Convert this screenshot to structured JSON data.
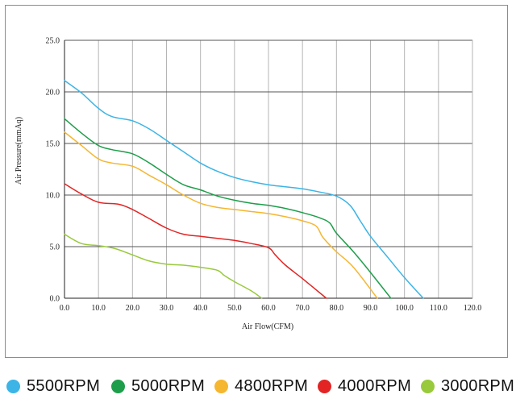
{
  "chart_data": {
    "type": "line",
    "title": "",
    "xlabel": "Air Flow(CFM)",
    "ylabel": "Air Pressure(mmAq)",
    "xlim": [
      0,
      120
    ],
    "ylim": [
      0,
      25
    ],
    "x_ticks": [
      "0.0",
      "10.0",
      "20.0",
      "30.0",
      "40.0",
      "50.0",
      "60.0",
      "70.0",
      "80.0",
      "90.0",
      "100.0",
      "110.0",
      "120.0"
    ],
    "y_ticks": [
      "0.0",
      "5.0",
      "10.0",
      "15.0",
      "20.0",
      "25.0"
    ],
    "grid": true,
    "legend_position": "bottom",
    "series": [
      {
        "name": "5500RPM",
        "color": "#3cb4e6",
        "x": [
          0,
          5,
          10,
          14,
          20,
          25,
          30,
          35,
          40,
          45,
          50,
          55,
          60,
          65,
          70,
          75,
          80,
          84,
          87,
          90,
          95,
          100,
          105.5
        ],
        "y": [
          21.1,
          19.9,
          18.4,
          17.6,
          17.2,
          16.4,
          15.3,
          14.2,
          13.1,
          12.3,
          11.7,
          11.3,
          11.0,
          10.8,
          10.6,
          10.3,
          9.9,
          9.0,
          7.5,
          6.0,
          4.0,
          2.0,
          0
        ]
      },
      {
        "name": "5000RPM",
        "color": "#1e9e4a",
        "x": [
          0,
          5,
          10,
          14,
          20,
          25,
          30,
          35,
          40,
          45,
          50,
          55,
          60,
          65,
          70,
          75,
          78,
          80,
          85,
          90,
          96
        ],
        "y": [
          17.4,
          16.0,
          14.8,
          14.4,
          14.0,
          13.1,
          12.0,
          11.0,
          10.5,
          9.9,
          9.5,
          9.2,
          9.0,
          8.7,
          8.3,
          7.8,
          7.3,
          6.3,
          4.5,
          2.5,
          0
        ]
      },
      {
        "name": "4800RPM",
        "color": "#f5b630",
        "x": [
          0,
          5,
          10,
          14,
          20,
          25,
          30,
          35,
          40,
          45,
          50,
          55,
          60,
          65,
          70,
          74,
          76,
          80,
          85,
          92
        ],
        "y": [
          16.1,
          14.8,
          13.5,
          13.1,
          12.8,
          11.9,
          11.0,
          10.0,
          9.2,
          8.8,
          8.6,
          8.4,
          8.2,
          7.9,
          7.5,
          7.0,
          5.9,
          4.5,
          3.0,
          0
        ]
      },
      {
        "name": "4000RPM",
        "color": "#e22424",
        "x": [
          0,
          5,
          10,
          16,
          20,
          25,
          30,
          35,
          40,
          45,
          50,
          55,
          60,
          62,
          65,
          70,
          77
        ],
        "y": [
          11.1,
          10.1,
          9.3,
          9.1,
          8.6,
          7.7,
          6.8,
          6.2,
          6.0,
          5.8,
          5.6,
          5.3,
          4.9,
          4.2,
          3.2,
          1.9,
          0
        ]
      },
      {
        "name": "3000RPM",
        "color": "#99c93c",
        "x": [
          0,
          5,
          10,
          15,
          20,
          25,
          30,
          35,
          40,
          45,
          47,
          50,
          55,
          58
        ],
        "y": [
          6.2,
          5.3,
          5.1,
          4.8,
          4.2,
          3.6,
          3.3,
          3.2,
          3.0,
          2.7,
          2.2,
          1.6,
          0.7,
          0
        ]
      }
    ]
  }
}
